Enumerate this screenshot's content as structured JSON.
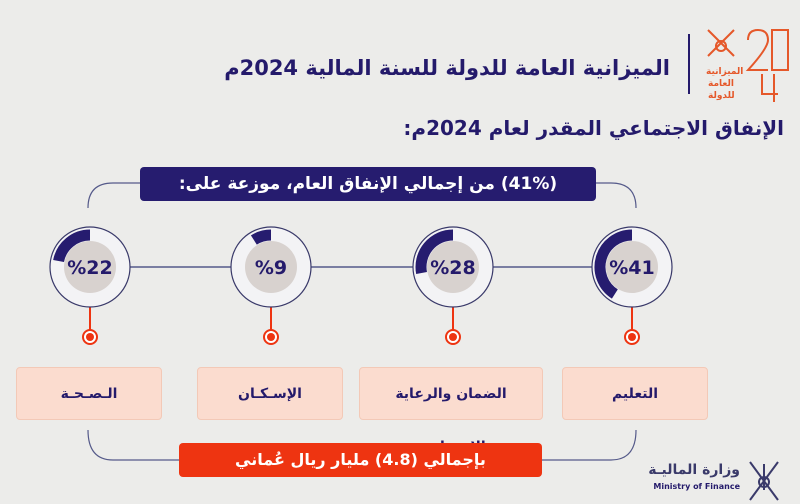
{
  "header": {
    "title": "الميزانية العامة للدولة للسنة المالية 2024م",
    "logo_text": "الميزانية العامة للدولة 2024"
  },
  "subtitle": "الإنفاق الاجتماعي المقدر لعام 2024م:",
  "share_banner": "(41%) من إجمالي الإنفاق العام، موزعة على:",
  "sectors": [
    {
      "label": "التعليم",
      "percent": 41,
      "percent_label": "%41"
    },
    {
      "label": "الضمان والرعاية الاجتماعية",
      "percent": 28,
      "percent_label": "%28"
    },
    {
      "label": "الإسـكـان",
      "percent": 9,
      "percent_label": "%9"
    },
    {
      "label": "الـصـحـة",
      "percent": 22,
      "percent_label": "%22"
    }
  ],
  "total_banner": "بإجمالي (4.8) مليار ريال عُماني",
  "footer": {
    "arabic": "وزارة الماليـة",
    "english": "Ministry of Finance"
  },
  "colors": {
    "navy": "#261c6f",
    "orange": "#ee3411",
    "box": "#fbdccf",
    "logo": "#e5582a"
  }
}
